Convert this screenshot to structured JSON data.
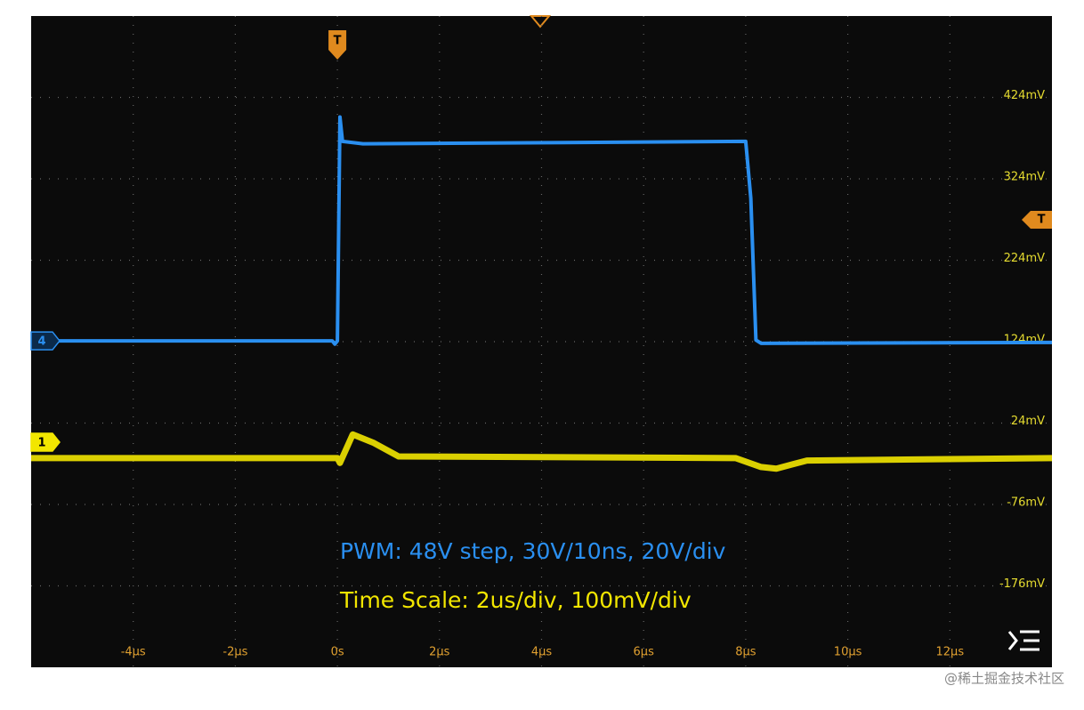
{
  "chart_data": {
    "type": "line",
    "annotations": [
      "PWM: 48V step, 30V/10ns, 20V/div",
      "Time Scale: 2us/div, 100mV/div"
    ],
    "markers": {
      "channel_4": "4",
      "channel_1": "1",
      "trigger_time": "T",
      "trigger_level": "T"
    },
    "watermark": "@稀土掘金技术社区",
    "xlim": [
      -6,
      14
    ],
    "xticks": [
      {
        "value": -4,
        "label": "-4µs"
      },
      {
        "value": -2,
        "label": "-2µs"
      },
      {
        "value": 0,
        "label": "0s"
      },
      {
        "value": 2,
        "label": "2µs"
      },
      {
        "value": 4,
        "label": "4µs"
      },
      {
        "value": 6,
        "label": "6µs"
      },
      {
        "value": 8,
        "label": "8µs"
      },
      {
        "value": 10,
        "label": "10µs"
      },
      {
        "value": 12,
        "label": "12µs"
      }
    ],
    "ylim": [
      -276,
      524
    ],
    "yticks": [
      {
        "value": 424,
        "label": "424mV"
      },
      {
        "value": 324,
        "label": "324mV"
      },
      {
        "value": 224,
        "label": "224mV"
      },
      {
        "value": 124,
        "label": "124mV"
      },
      {
        "value": 24,
        "label": "24mV"
      },
      {
        "value": -76,
        "label": "-76mV"
      },
      {
        "value": -176,
        "label": "-176mV"
      }
    ],
    "grid": true,
    "series": [
      {
        "name": "4",
        "color": "#2a8ff0",
        "x": [
          -6,
          -0.1,
          -0.05,
          0,
          0.05,
          0.1,
          0.5,
          8,
          8.1,
          8.2,
          8.3,
          14
        ],
        "values": [
          125,
          125,
          121,
          125,
          400,
          370,
          367,
          370,
          300,
          126,
          122,
          123
        ]
      },
      {
        "name": "1",
        "color": "#f2e600",
        "x": [
          -6,
          0,
          0.05,
          0.3,
          0.7,
          1.2,
          7.8,
          8.3,
          8.6,
          9.2,
          14
        ],
        "values": [
          -19,
          -19,
          -25,
          10,
          0,
          -17,
          -19,
          -30,
          -32,
          -22,
          -19
        ]
      }
    ]
  }
}
